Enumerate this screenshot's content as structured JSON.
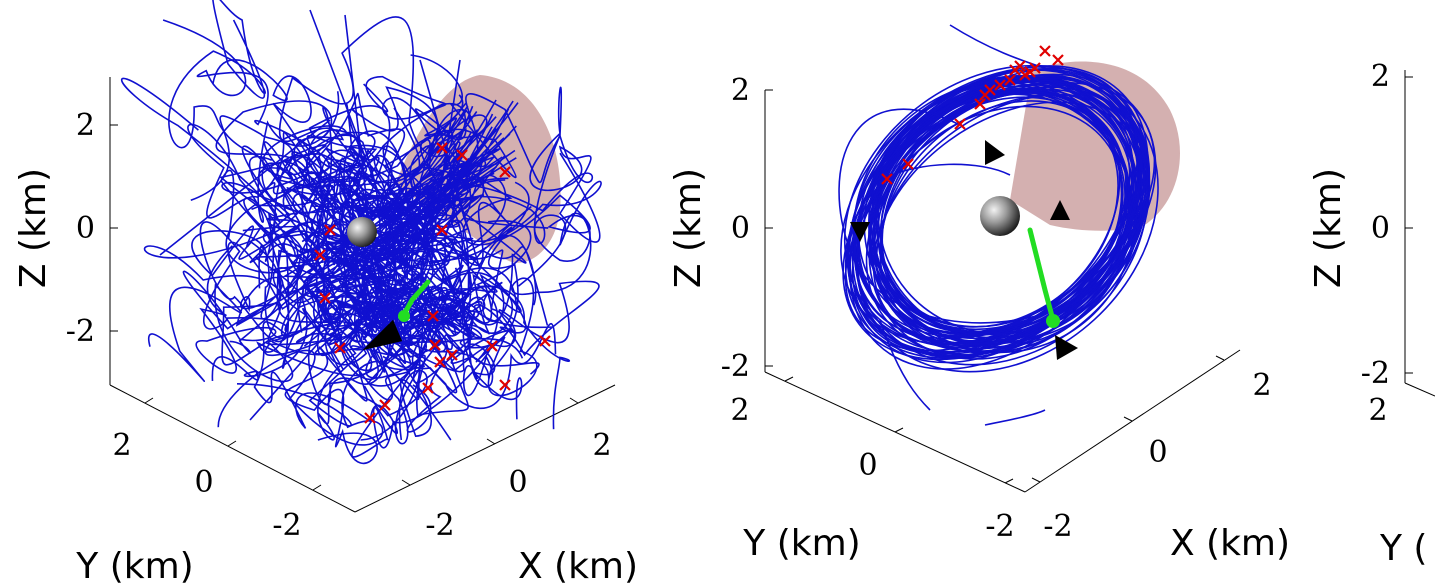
{
  "chart_data": [
    {
      "type": "line3d",
      "xlabel": "X (km)",
      "ylabel": "Y (km)",
      "zlabel": "Z (km)",
      "x_ticks": [
        "-2",
        "0",
        "2"
      ],
      "y_ticks": [
        "-2",
        "0",
        "2"
      ],
      "z_ticks": [
        "-2",
        "0",
        "2"
      ],
      "xlim": [
        -3,
        3
      ],
      "ylim": [
        -3,
        3
      ],
      "zlim": [
        -3,
        3
      ],
      "grid": false,
      "colors": {
        "trajectory": "#1010d0",
        "failure_marker": "#e00000",
        "thrust_segment": "#22dd22",
        "cone": "#b07070",
        "body": "#888888"
      }
    },
    {
      "type": "line3d",
      "xlabel": "X (km)",
      "ylabel": "Y (km)",
      "zlabel": "Z (km)",
      "x_ticks": [
        "-2",
        "0",
        "2"
      ],
      "y_ticks": [
        "-2",
        "0",
        "2"
      ],
      "z_ticks": [
        "-2",
        "0",
        "2"
      ],
      "xlim": [
        -3,
        3
      ],
      "ylim": [
        -3,
        3
      ],
      "zlim": [
        -2,
        2
      ],
      "grid": false,
      "colors": {
        "trajectory": "#1010d0",
        "failure_marker": "#e00000",
        "thrust_segment": "#22dd22",
        "cone": "#b07070",
        "body": "#888888"
      }
    },
    {
      "type": "line3d",
      "ylabel_visible": "Y (",
      "zlabel": "Z (km)",
      "y_ticks": [
        "2"
      ],
      "z_ticks": [
        "-2",
        "0",
        "2"
      ],
      "zlim": [
        -2,
        2
      ],
      "grid": false
    }
  ]
}
